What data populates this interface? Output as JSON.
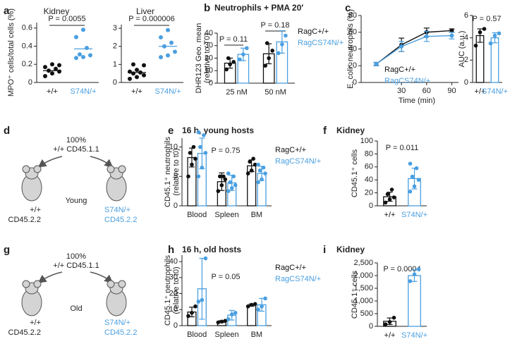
{
  "chart_data": [
    {
      "type": "dot",
      "panel": "a",
      "title": "Kidney",
      "ylabel": "MPO⁺ cells/total cells (%)",
      "categories": [
        "+/+",
        "S74N/+"
      ],
      "colors": [
        "#111111",
        "#4a9fe0"
      ],
      "points": [
        [
          0.07,
          0.1,
          0.12,
          0.13,
          0.15,
          0.17,
          0.2,
          0.19
        ],
        [
          0.27,
          0.28,
          0.3,
          0.31,
          0.38,
          0.5,
          0.58
        ]
      ],
      "means": [
        0.13,
        0.37
      ],
      "ylim": [
        0,
        0.66
      ],
      "yticks": [
        0,
        0.2,
        0.4,
        0.6
      ],
      "annotations": [
        "P = 0.0055"
      ],
      "bracket": true
    },
    {
      "type": "dot",
      "title": "Liver",
      "categories": [
        "+/+",
        "S74N/+"
      ],
      "colors": [
        "#111111",
        "#4a9fe0"
      ],
      "points": [
        [
          0.2,
          0.3,
          0.4,
          0.5,
          0.55,
          0.6,
          0.7,
          0.95,
          1.0
        ],
        [
          1.4,
          1.5,
          1.7,
          2.0,
          2.2,
          2.5,
          2.9
        ]
      ],
      "means": [
        0.55,
        2.0
      ],
      "ylim": [
        0,
        3.2
      ],
      "yticks": [
        0,
        1,
        2,
        3
      ],
      "annotations": [
        "P = 0.000006"
      ],
      "bracket": true
    },
    {
      "type": "bar",
      "panel": "b",
      "title": "Neutrophils + PMA 20′",
      "ylabel": [
        "DHR123 Geo. mean",
        "(relative to T0)"
      ],
      "categories": [
        "25 nM",
        "50 nM"
      ],
      "ylim": [
        0,
        40
      ],
      "yticks": [
        0,
        10,
        20,
        30,
        40
      ],
      "series": [
        {
          "name": "RagC+/+",
          "color": "#111111",
          "values": [
            16,
            23.5
          ],
          "errors": [
            4,
            8
          ],
          "points": [
            [
              11,
              15,
              17,
              20
            ],
            [
              14,
              20,
              26,
              32
            ]
          ]
        },
        {
          "name": "RagCS74N/+",
          "color": "#4a9fe0",
          "values": [
            23,
            33
          ],
          "errors": [
            5,
            9
          ],
          "points": [
            [
              19,
              23,
              28
            ],
            [
              24,
              31,
              38
            ]
          ]
        }
      ],
      "annotations": [
        "P = 0.11",
        "P = 0.18"
      ],
      "bracket": true
    },
    {
      "type": "line",
      "panel": "c",
      "ylabel": "E. coli⁺ neutrophils (%)",
      "xlabel": "Time (min)",
      "x": [
        0,
        30,
        60,
        90
      ],
      "xlim": [
        -18,
        98
      ],
      "xticks": [
        30,
        60,
        90
      ],
      "ylim": [
        0,
        80
      ],
      "yticks": [
        0,
        20,
        40,
        60,
        80
      ],
      "series": [
        {
          "name": "RagC+/+",
          "color": "#111111",
          "values": [
            22,
            45,
            60,
            62
          ],
          "errors": [
            2,
            8,
            5,
            2
          ]
        },
        {
          "name": "RagCS74N/+",
          "color": "#4a9fe0",
          "values": [
            22,
            43,
            55,
            56
          ],
          "errors": [
            2,
            6,
            6,
            4
          ]
        }
      ]
    },
    {
      "type": "bar",
      "ylabel": "AUC (a.u.)",
      "categories": [
        "+/+",
        "S74N/+"
      ],
      "colors": [
        "#111111",
        "#4a9fe0"
      ],
      "values": [
        4.2,
        4.0
      ],
      "errors": [
        0.6,
        0.45
      ],
      "points": [
        [
          3.3,
          4.5,
          4.8
        ],
        [
          3.5,
          4.2,
          4.4
        ]
      ],
      "ylim": [
        0,
        6
      ],
      "yticks": [
        0,
        2,
        4,
        6
      ],
      "annotations": [
        "P = 0.57"
      ]
    },
    {
      "type": "bar",
      "panel": "e",
      "title": "16 h, young hosts",
      "ylabel": [
        "CD45.1⁺ neutrophils",
        "(relative to t0)"
      ],
      "categories": [
        "Blood",
        "Spleen",
        "BM"
      ],
      "ylim": [
        0,
        11.5
      ],
      "yticks": [
        0,
        5,
        10
      ],
      "series": [
        {
          "name": "RagC+/+",
          "color": "#111111",
          "values": [
            8.2,
            4.1,
            6.8
          ],
          "errors": [
            1.6,
            1.5,
            1.0
          ],
          "points": [
            [
              5,
              7,
              8,
              9,
              10
            ],
            [
              2.5,
              3.5,
              4.5,
              5,
              5
            ],
            [
              5.5,
              6,
              7,
              7.5,
              8
            ]
          ]
        },
        {
          "name": "RagCS74N/+",
          "color": "#4a9fe0",
          "values": [
            8.9,
            3.9,
            5.5
          ],
          "errors": [
            2.6,
            1.3,
            1.2
          ],
          "points": [
            [
              5,
              6.5,
              9,
              10,
              12,
              12.5
            ],
            [
              2.5,
              3,
              3.5,
              4,
              5,
              5.5
            ],
            [
              4,
              4.5,
              5.5,
              6,
              6.5,
              7
            ]
          ]
        }
      ],
      "annotations": [
        "P = 0.75"
      ]
    },
    {
      "type": "bar",
      "panel": "f",
      "title": "Kidney",
      "ylabel": "CD45.1⁺ cells",
      "categories": [
        "+/+",
        "S74N/+"
      ],
      "colors": [
        "#111111",
        "#4a9fe0"
      ],
      "values": [
        14,
        42
      ],
      "errors": [
        7,
        16
      ],
      "points": [
        [
          5,
          10,
          13,
          18,
          25
        ],
        [
          22,
          30,
          40,
          45,
          58,
          65
        ]
      ],
      "ylim": [
        0,
        100
      ],
      "yticks": [
        0,
        20,
        40,
        60,
        80,
        100
      ],
      "annotations": [
        "P = 0.011"
      ]
    },
    {
      "type": "bar",
      "panel": "h",
      "title": "16 h, old hosts",
      "ylabel": [
        "CD45.1⁺ neutrophils",
        "(relative to t0)"
      ],
      "categories": [
        "Blood",
        "Spleen",
        "BM"
      ],
      "ylim": [
        0,
        44
      ],
      "yticks": [
        0,
        10,
        20,
        30,
        40
      ],
      "series": [
        {
          "name": "RagC+/+",
          "color": "#111111",
          "values": [
            8.5,
            2.5,
            12.8
          ],
          "errors": [
            3,
            0.6,
            0.7
          ],
          "points": [
            [
              6,
              8,
              12
            ],
            [
              2,
              2.5,
              3
            ],
            [
              12,
              13,
              13.5
            ]
          ]
        },
        {
          "name": "RagCS74N/+",
          "color": "#4a9fe0",
          "values": [
            23,
            6.5,
            13
          ],
          "errors": [
            19,
            3,
            4
          ],
          "points": [
            [
              15,
              16,
              42
            ],
            [
              4,
              7,
              8
            ],
            [
              10,
              12,
              17
            ]
          ]
        }
      ],
      "annotations": [
        "P = 0.05"
      ]
    },
    {
      "type": "bar",
      "panel": "i",
      "title": "Kidney",
      "ylabel": "CD45.1⁺ cells",
      "categories": [
        "+/+",
        "S74N/+"
      ],
      "colors": [
        "#111111",
        "#4a9fe0"
      ],
      "values": [
        200,
        2000
      ],
      "errors": [
        130,
        230
      ],
      "points": [
        [
          80,
          170,
          340
        ],
        [
          1780,
          2050,
          2250
        ]
      ],
      "ylim": [
        0,
        2500
      ],
      "yticks": [
        0,
        500,
        {
          "value": 1000,
          "label": "1,000"
        },
        {
          "value": 1500,
          "label": "1,500"
        },
        {
          "value": 2000,
          "label": "2,000"
        },
        {
          "value": 2500,
          "label": "2,500"
        }
      ],
      "annotations": [
        "P = 0.0004"
      ]
    }
  ],
  "diagrams": [
    {
      "panel": "d",
      "top": "100%",
      "donor": "+/+ CD45.1.1",
      "hosts": "Young",
      "left_host": [
        "+/+",
        "CD45.2.2"
      ],
      "right_host": [
        "S74N/+",
        "CD45.2.2"
      ]
    },
    {
      "panel": "g",
      "top": "100%",
      "donor": "+/+ CD45.1.1",
      "hosts": "Old",
      "left_host": [
        "+/+",
        "CD45.2.2"
      ],
      "right_host": [
        "S74N/+",
        "CD45.2.2"
      ]
    }
  ]
}
